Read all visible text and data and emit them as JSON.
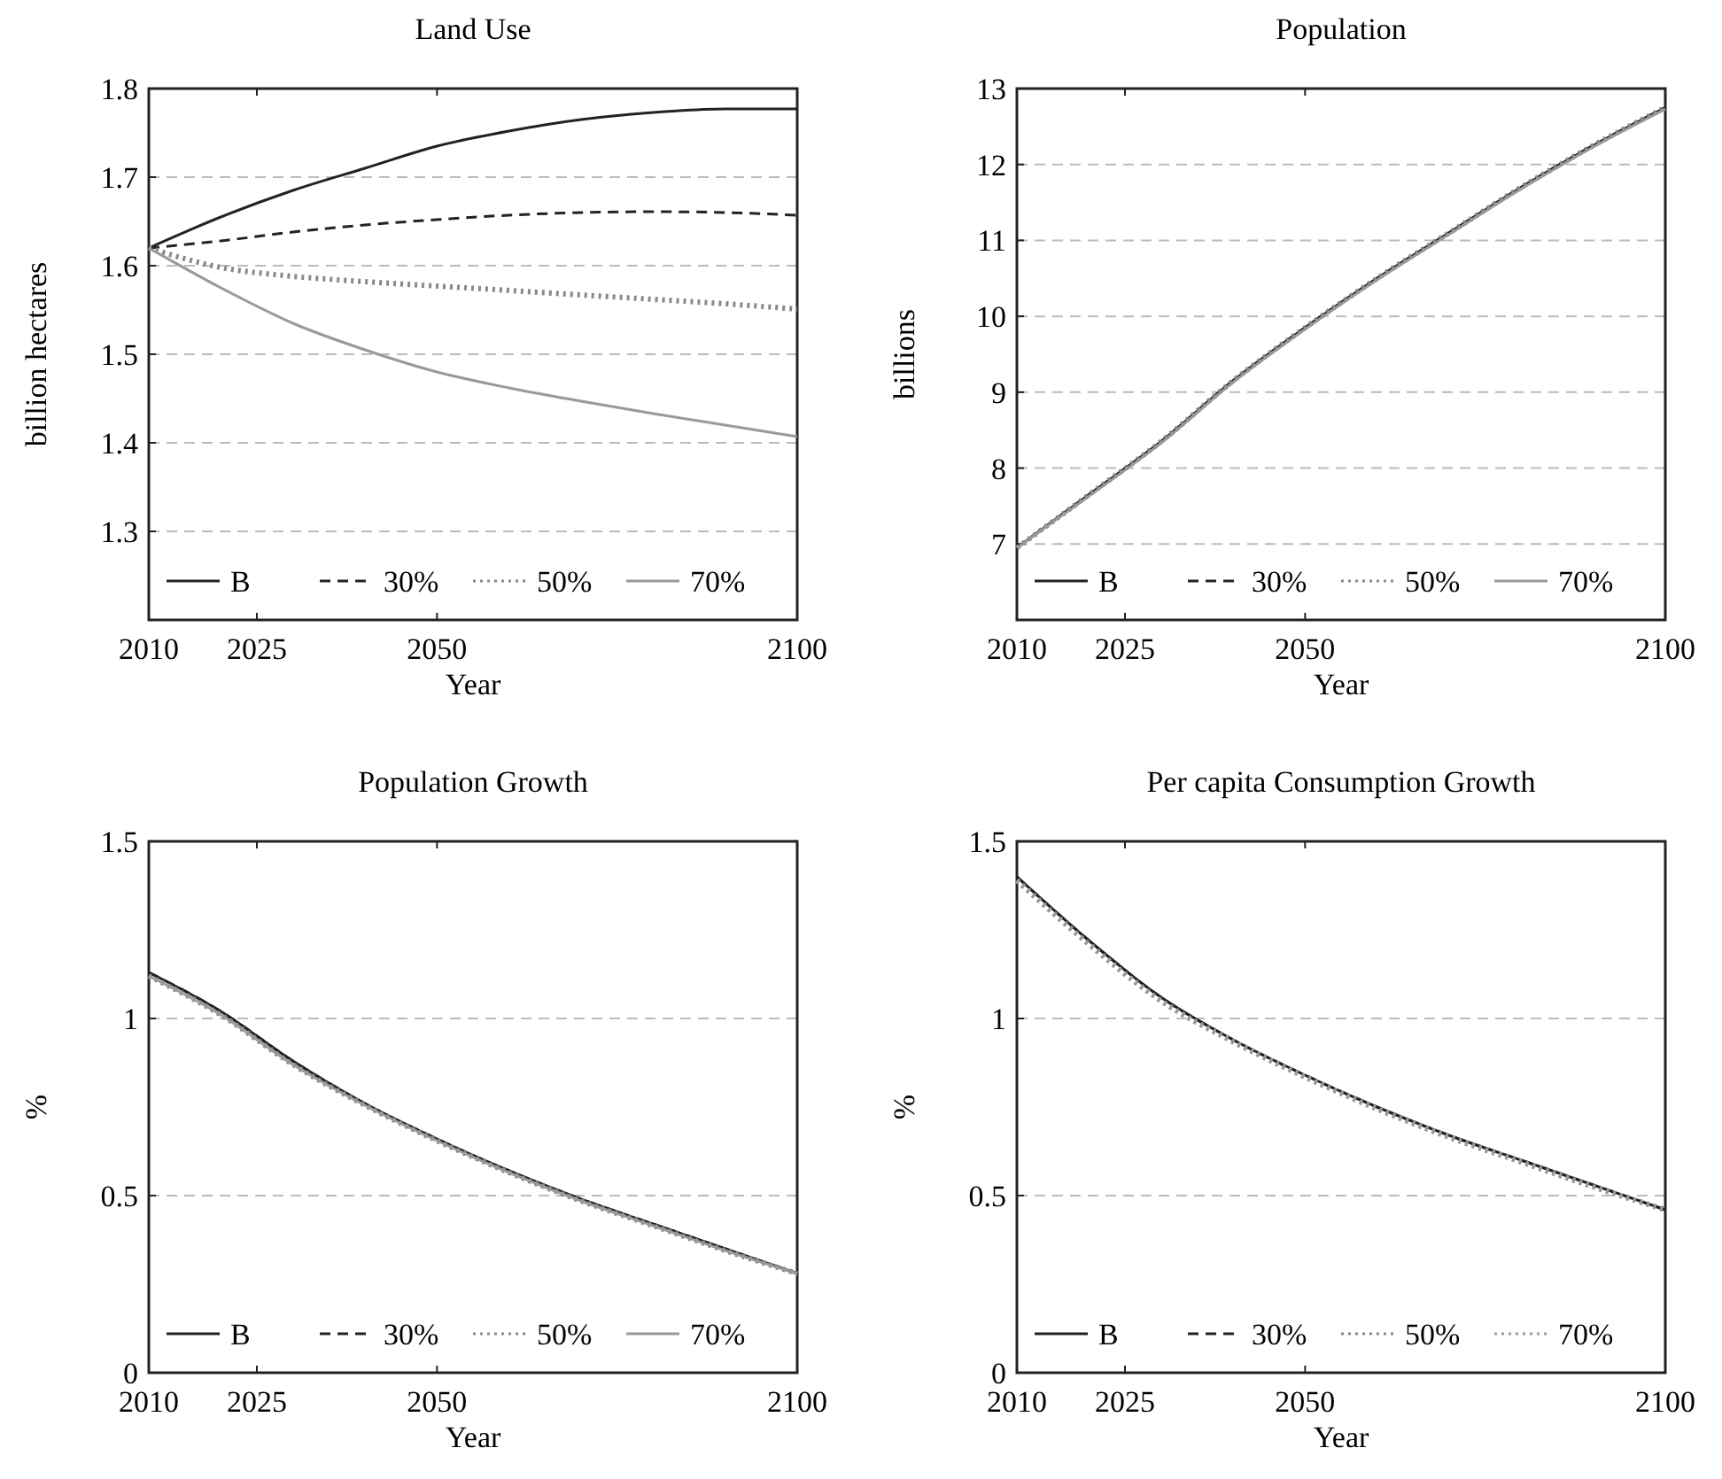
{
  "chart_data": [
    {
      "type": "line",
      "title": "Land Use",
      "xlabel": "Year",
      "ylabel": "billion hectares",
      "x": [
        2010,
        2020,
        2030,
        2040,
        2050,
        2060,
        2070,
        2080,
        2090,
        2100
      ],
      "xlim": [
        2010,
        2100
      ],
      "xticks": [
        2010,
        2025,
        2050,
        2100
      ],
      "ylim": [
        1.2,
        1.8
      ],
      "yticks": [
        1.3,
        1.4,
        1.5,
        1.6,
        1.7,
        1.8
      ],
      "grid": "y",
      "legend": "bottom",
      "series": [
        {
          "name": "B",
          "color": "#222222",
          "line_style": "solid",
          "values": [
            1.62,
            1.655,
            1.685,
            1.71,
            1.735,
            1.752,
            1.765,
            1.773,
            1.777,
            1.777
          ]
        },
        {
          "name": "30%",
          "color": "#222222",
          "line_style": "dashed",
          "values": [
            1.62,
            1.628,
            1.638,
            1.646,
            1.652,
            1.657,
            1.66,
            1.661,
            1.66,
            1.657
          ]
        },
        {
          "name": "50%",
          "color": "#888888",
          "line_style": "dotted",
          "values": [
            1.62,
            1.598,
            1.588,
            1.582,
            1.577,
            1.572,
            1.567,
            1.562,
            1.557,
            1.551
          ]
        },
        {
          "name": "70%",
          "color": "#999999",
          "line_style": "solid",
          "values": [
            1.62,
            1.575,
            1.535,
            1.505,
            1.48,
            1.462,
            1.447,
            1.433,
            1.42,
            1.407
          ]
        }
      ]
    },
    {
      "type": "line",
      "title": "Population",
      "xlabel": "Year",
      "ylabel": "billions",
      "x": [
        2010,
        2020,
        2030,
        2040,
        2050,
        2060,
        2070,
        2080,
        2090,
        2100
      ],
      "xlim": [
        2010,
        2100
      ],
      "xticks": [
        2010,
        2025,
        2050,
        2100
      ],
      "ylim": [
        6,
        13
      ],
      "yticks": [
        7,
        8,
        9,
        10,
        11,
        12,
        13
      ],
      "grid": "y",
      "legend": "bottom",
      "series": [
        {
          "name": "B",
          "color": "#222222",
          "line_style": "solid",
          "values": [
            6.95,
            7.65,
            8.35,
            9.15,
            9.85,
            10.5,
            11.1,
            11.7,
            12.25,
            12.75
          ]
        },
        {
          "name": "30%",
          "color": "#222222",
          "line_style": "dashed",
          "values": [
            6.95,
            7.65,
            8.35,
            9.15,
            9.85,
            10.5,
            11.1,
            11.7,
            12.25,
            12.75
          ]
        },
        {
          "name": "50%",
          "color": "#888888",
          "line_style": "dotted",
          "values": [
            6.95,
            7.65,
            8.35,
            9.15,
            9.85,
            10.5,
            11.1,
            11.7,
            12.25,
            12.75
          ]
        },
        {
          "name": "70%",
          "color": "#999999",
          "line_style": "solid",
          "values": [
            6.95,
            7.63,
            8.33,
            9.13,
            9.83,
            10.48,
            11.08,
            11.68,
            12.23,
            12.73
          ]
        }
      ]
    },
    {
      "type": "line",
      "title": "Population Growth",
      "xlabel": "Year",
      "ylabel": "%",
      "x": [
        2010,
        2020,
        2030,
        2040,
        2050,
        2060,
        2070,
        2080,
        2090,
        2100
      ],
      "xlim": [
        2010,
        2100
      ],
      "xticks": [
        2010,
        2025,
        2050,
        2100
      ],
      "ylim": [
        0,
        1.5
      ],
      "yticks": [
        0,
        0.5,
        1,
        1.5
      ],
      "grid": "y",
      "legend": "bottom",
      "series": [
        {
          "name": "B",
          "color": "#222222",
          "line_style": "solid",
          "values": [
            1.13,
            1.02,
            0.88,
            0.76,
            0.66,
            0.57,
            0.49,
            0.42,
            0.35,
            0.28
          ]
        },
        {
          "name": "30%",
          "color": "#222222",
          "line_style": "dashed",
          "values": [
            1.13,
            1.02,
            0.88,
            0.76,
            0.66,
            0.57,
            0.49,
            0.42,
            0.35,
            0.28
          ]
        },
        {
          "name": "50%",
          "color": "#888888",
          "line_style": "dotted",
          "values": [
            1.12,
            1.01,
            0.87,
            0.755,
            0.655,
            0.565,
            0.485,
            0.415,
            0.345,
            0.28
          ]
        },
        {
          "name": "70%",
          "color": "#999999",
          "line_style": "solid",
          "values": [
            1.12,
            1.01,
            0.87,
            0.755,
            0.655,
            0.565,
            0.485,
            0.415,
            0.345,
            0.28
          ]
        }
      ]
    },
    {
      "type": "line",
      "title": "Per capita Consumption Growth",
      "xlabel": "Year",
      "ylabel": "%",
      "x": [
        2010,
        2020,
        2030,
        2040,
        2050,
        2060,
        2070,
        2080,
        2090,
        2100
      ],
      "xlim": [
        2010,
        2100
      ],
      "xticks": [
        2010,
        2025,
        2050,
        2100
      ],
      "ylim": [
        0,
        1.5
      ],
      "yticks": [
        0,
        0.5,
        1,
        1.5
      ],
      "grid": "y",
      "legend": "bottom",
      "series": [
        {
          "name": "B",
          "color": "#222222",
          "line_style": "solid",
          "values": [
            1.4,
            1.22,
            1.06,
            0.94,
            0.84,
            0.75,
            0.67,
            0.6,
            0.53,
            0.46
          ]
        },
        {
          "name": "30%",
          "color": "#222222",
          "line_style": "dashed",
          "values": [
            1.4,
            1.22,
            1.06,
            0.94,
            0.84,
            0.75,
            0.67,
            0.6,
            0.53,
            0.46
          ]
        },
        {
          "name": "50%",
          "color": "#888888",
          "line_style": "dotted",
          "values": [
            1.39,
            1.21,
            1.05,
            0.935,
            0.835,
            0.745,
            0.665,
            0.595,
            0.525,
            0.46
          ]
        },
        {
          "name": "70%",
          "color": "#999999",
          "line_style": "dotted",
          "values": [
            1.39,
            1.21,
            1.05,
            0.935,
            0.835,
            0.745,
            0.665,
            0.595,
            0.525,
            0.46
          ]
        }
      ]
    }
  ]
}
